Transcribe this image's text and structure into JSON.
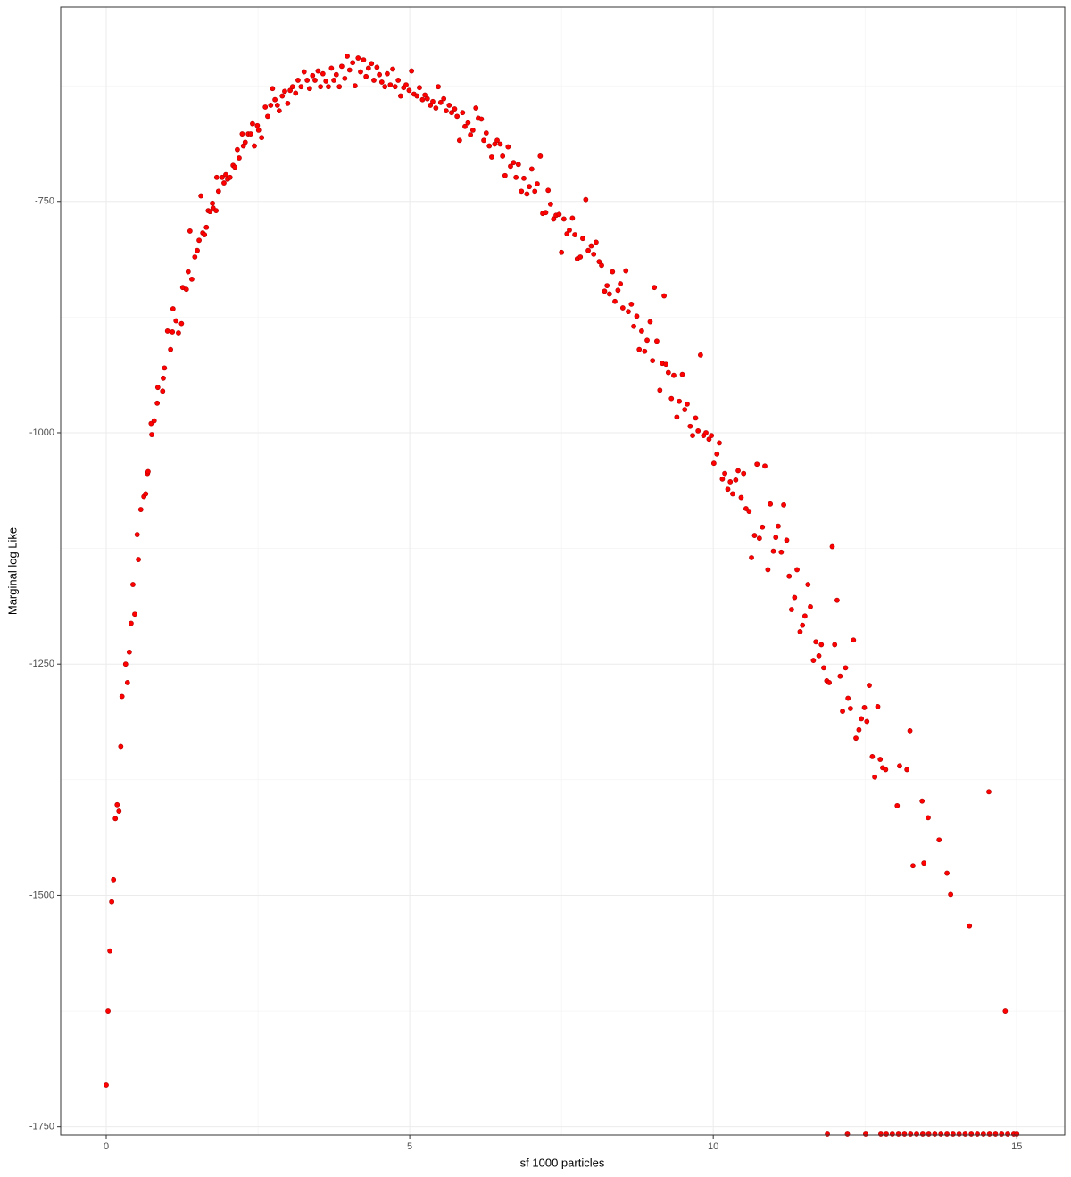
{
  "chart_data": {
    "type": "scatter",
    "x_label": "sf 1000 particles",
    "y_label": "Marginal log Like",
    "xlim": [
      -0.75,
      15.79
    ],
    "ylim": [
      -1759,
      -540
    ],
    "xticks": [
      0,
      5,
      10,
      15
    ],
    "yticks": [
      -1750,
      -1500,
      -1250,
      -1000,
      -750
    ],
    "x_minor_ticks": [
      2.5,
      7.5,
      12.5
    ],
    "y_minor_ticks": [
      -1625,
      -1375,
      -1125,
      -875,
      -625
    ],
    "grid": true,
    "color": "#ff0000",
    "x": [
      0.0,
      0.03,
      0.06,
      0.09,
      0.12,
      0.15,
      0.18,
      0.21,
      0.24,
      0.26,
      0.32,
      0.35,
      0.38,
      0.41,
      0.47,
      0.44,
      0.53,
      0.51,
      0.57,
      0.62,
      0.65,
      0.68,
      0.69,
      0.75,
      0.74,
      0.79,
      0.84,
      0.85,
      0.93,
      0.96,
      0.94,
      1.01,
      1.06,
      1.09,
      1.1,
      1.15,
      1.19,
      1.24,
      1.26,
      1.32,
      1.35,
      1.38,
      1.41,
      1.46,
      1.5,
      1.53,
      1.56,
      1.59,
      1.62,
      1.65,
      1.68,
      1.71,
      1.75,
      1.76,
      1.81,
      1.82,
      1.85,
      1.91,
      1.94,
      1.97,
      2.0,
      2.04,
      2.09,
      2.12,
      2.16,
      2.19,
      2.24,
      2.26,
      2.29,
      2.34,
      2.38,
      2.41,
      2.44,
      2.49,
      2.51,
      2.56,
      2.62,
      2.66,
      2.71,
      2.74,
      2.78,
      2.82,
      2.85,
      2.9,
      2.94,
      2.99,
      3.03,
      3.07,
      3.12,
      3.16,
      3.21,
      3.26,
      3.31,
      3.35,
      3.4,
      3.44,
      3.49,
      3.53,
      3.57,
      3.62,
      3.66,
      3.71,
      3.75,
      3.79,
      3.84,
      3.88,
      3.93,
      3.97,
      4.01,
      4.06,
      4.1,
      4.15,
      4.19,
      4.24,
      4.28,
      4.32,
      4.37,
      4.41,
      4.46,
      4.5,
      4.54,
      4.59,
      4.63,
      4.68,
      4.72,
      4.76,
      4.81,
      4.85,
      4.9,
      4.94,
      4.99,
      5.03,
      5.07,
      5.12,
      5.16,
      5.21,
      5.25,
      5.29,
      5.34,
      5.38,
      5.43,
      5.47,
      5.51,
      5.56,
      5.6,
      5.65,
      5.69,
      5.74,
      5.78,
      5.82,
      5.87,
      5.91,
      5.96,
      6.0,
      6.04,
      6.09,
      6.13,
      6.18,
      6.22,
      6.26,
      6.31,
      6.35,
      6.4,
      6.44,
      6.49,
      6.53,
      6.57,
      6.62,
      6.66,
      6.71,
      6.75,
      6.79,
      6.84,
      6.88,
      6.93,
      6.97,
      7.01,
      7.06,
      7.1,
      7.15,
      7.19,
      7.24,
      7.28,
      7.32,
      7.37,
      7.41,
      7.46,
      7.5,
      7.54,
      7.59,
      7.63,
      7.68,
      7.72,
      7.76,
      7.81,
      7.85,
      7.9,
      7.94,
      7.99,
      8.03,
      8.07,
      8.12,
      8.16,
      8.21,
      8.25,
      8.29,
      8.34,
      8.38,
      8.43,
      8.47,
      8.51,
      8.56,
      8.6,
      8.65,
      8.69,
      8.74,
      8.78,
      8.82,
      8.87,
      8.91,
      8.96,
      9.0,
      9.03,
      9.07,
      9.12,
      9.16,
      9.19,
      9.22,
      9.26,
      9.31,
      9.35,
      9.4,
      9.44,
      9.49,
      9.53,
      9.57,
      9.62,
      9.66,
      9.71,
      9.75,
      9.79,
      9.84,
      9.88,
      9.93,
      9.97,
      10.01,
      10.06,
      10.1,
      10.15,
      10.19,
      10.24,
      10.28,
      10.32,
      10.37,
      10.41,
      10.46,
      10.5,
      10.54,
      10.59,
      10.63,
      10.68,
      10.72,
      10.76,
      10.81,
      10.85,
      10.9,
      10.94,
      10.99,
      11.03,
      11.07,
      11.12,
      11.16,
      11.21,
      11.25,
      11.29,
      11.34,
      11.38,
      11.43,
      11.47,
      11.51,
      11.56,
      11.6,
      11.65,
      11.69,
      11.74,
      11.78,
      11.82,
      11.87,
      11.91,
      11.96,
      12.0,
      12.04,
      12.09,
      12.13,
      12.18,
      12.22,
      12.26,
      12.31,
      12.35,
      12.4,
      12.44,
      12.49,
      12.53,
      12.57,
      12.62,
      12.66,
      12.71,
      12.75,
      12.79,
      12.84,
      13.03,
      13.07,
      13.19,
      13.24,
      13.29,
      13.44,
      13.47,
      13.54,
      13.72,
      13.85,
      13.91,
      14.22,
      14.54,
      14.81,
      11.88,
      12.21,
      12.51,
      12.76,
      12.85,
      12.95,
      13.05,
      13.15,
      13.25,
      13.35,
      13.45,
      13.55,
      13.65,
      13.75,
      13.85,
      13.95,
      14.05,
      14.15,
      14.25,
      14.35,
      14.45,
      14.55,
      14.65,
      14.75,
      14.85,
      14.95,
      15.0
    ],
    "y": [
      -1705,
      -1625,
      -1560,
      -1507,
      -1483,
      -1417,
      -1402,
      -1409,
      -1339,
      -1285,
      -1250,
      -1270,
      -1237,
      -1206,
      -1196,
      -1164,
      -1137,
      -1110,
      -1083,
      -1069,
      -1066,
      -1044,
      -1042,
      -1002,
      -990,
      -987,
      -968,
      -951,
      -955,
      -930,
      -941,
      -890,
      -910,
      -891,
      -866,
      -879,
      -892,
      -882,
      -843,
      -845,
      -826,
      -782,
      -834,
      -810,
      -803,
      -792,
      -744,
      -784,
      -786,
      -778,
      -760,
      -761,
      -752,
      -757,
      -760,
      -724,
      -739,
      -724,
      -730,
      -721,
      -726,
      -724,
      -711,
      -713,
      -694,
      -703,
      -677,
      -690,
      -686,
      -677,
      -677,
      -666,
      -690,
      -668,
      -673,
      -681,
      -648,
      -658,
      -646,
      -628,
      -640,
      -646,
      -652,
      -636,
      -631,
      -644,
      -630,
      -626,
      -633,
      -619,
      -626,
      -610,
      -619,
      -628,
      -614,
      -619,
      -609,
      -626,
      -612,
      -620,
      -626,
      -606,
      -619,
      -613,
      -626,
      -604,
      -617,
      -593,
      -608,
      -600,
      -625,
      -595,
      -610,
      -597,
      -615,
      -606,
      -601,
      -619,
      -605,
      -613,
      -621,
      -626,
      -612,
      -624,
      -607,
      -626,
      -619,
      -636,
      -627,
      -624,
      -630,
      -609,
      -634,
      -636,
      -627,
      -640,
      -635,
      -639,
      -646,
      -642,
      -649,
      -626,
      -643,
      -639,
      -652,
      -646,
      -654,
      -650,
      -658,
      -684,
      -654,
      -669,
      -665,
      -678,
      -673,
      -649,
      -660,
      -661,
      -684,
      -676,
      -690,
      -702,
      -688,
      -684,
      -688,
      -701,
      -722,
      -691,
      -712,
      -708,
      -724,
      -710,
      -739,
      -725,
      -742,
      -734,
      -715,
      -739,
      -731,
      -701,
      -763,
      -762,
      -738,
      -753,
      -769,
      -765,
      -764,
      -805,
      -769,
      -785,
      -781,
      -768,
      -786,
      -812,
      -810,
      -790,
      -748,
      -803,
      -798,
      -807,
      -794,
      -815,
      -819,
      -847,
      -841,
      -850,
      -826,
      -858,
      -846,
      -839,
      -865,
      -825,
      -869,
      -861,
      -885,
      -874,
      -910,
      -890,
      -912,
      -900,
      -880,
      -922,
      -843,
      -901,
      -954,
      -925,
      -852,
      -926,
      -935,
      -963,
      -938,
      -983,
      -966,
      -937,
      -975,
      -969,
      -993,
      -1003,
      -984,
      -998,
      -916,
      -1003,
      -1000,
      -1007,
      -1003,
      -1033,
      -1023,
      -1011,
      -1050,
      -1044,
      -1061,
      -1053,
      -1066,
      -1051,
      -1041,
      -1070,
      -1044,
      -1082,
      -1085,
      -1135,
      -1111,
      -1034,
      -1114,
      -1102,
      -1036,
      -1148,
      -1077,
      -1128,
      -1113,
      -1101,
      -1129,
      -1078,
      -1116,
      -1155,
      -1191,
      -1178,
      -1148,
      -1215,
      -1208,
      -1198,
      -1164,
      -1188,
      -1246,
      -1226,
      -1241,
      -1229,
      -1254,
      -1268,
      -1270,
      -1123,
      -1229,
      -1181,
      -1263,
      -1301,
      -1254,
      -1287,
      -1298,
      -1224,
      -1330,
      -1321,
      -1309,
      -1297,
      -1312,
      -1273,
      -1350,
      -1372,
      -1296,
      -1353,
      -1362,
      -1364,
      -1403,
      -1360,
      -1364,
      -1322,
      -1468,
      -1398,
      -1465,
      -1416,
      -1440,
      -1476,
      -1499,
      -1533,
      -1388,
      -1625,
      -1758,
      -1758,
      -1758,
      -1758,
      -1758,
      -1758,
      -1758,
      -1758,
      -1758,
      -1758,
      -1758,
      -1758,
      -1758,
      -1758,
      -1758,
      -1758,
      -1758,
      -1758,
      -1758,
      -1758,
      -1758,
      -1758,
      -1758,
      -1758,
      -1758,
      -1758,
      -1758
    ]
  }
}
